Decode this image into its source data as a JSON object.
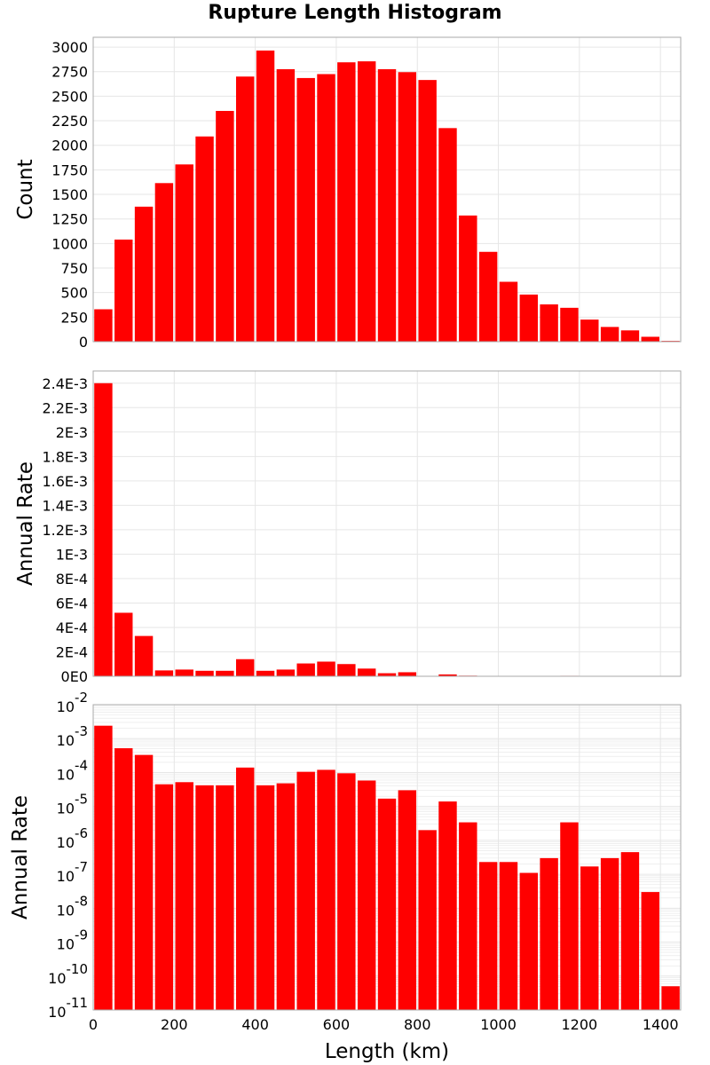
{
  "title": "Rupture Length Histogram",
  "colors": {
    "bar": "#ff0000",
    "grid": "#e6e6e6",
    "frame": "#aaaaaa"
  },
  "chart_data": [
    {
      "type": "bar",
      "name": "count-panel",
      "ylabel": "Count",
      "ylim": [
        0,
        3100
      ],
      "yticks": [
        0,
        250,
        500,
        750,
        1000,
        1250,
        1500,
        1750,
        2000,
        2250,
        2500,
        2750,
        3000
      ],
      "ytick_labels": [
        "0",
        "250",
        "500",
        "750",
        "1000",
        "1250",
        "1500",
        "1750",
        "2000",
        "2250",
        "2500",
        "2750",
        "3000"
      ],
      "xlim": [
        0,
        1450
      ],
      "bin_width": 50,
      "x": [
        25,
        75,
        125,
        175,
        225,
        275,
        325,
        375,
        425,
        475,
        525,
        575,
        625,
        675,
        725,
        775,
        825,
        875,
        925,
        975,
        1025,
        1075,
        1125,
        1175,
        1225,
        1275,
        1325,
        1375,
        1425
      ],
      "values": [
        330,
        1040,
        1375,
        1615,
        1805,
        2090,
        2350,
        2700,
        2965,
        2775,
        2685,
        2725,
        2845,
        2855,
        2775,
        2745,
        2665,
        2175,
        1285,
        915,
        610,
        480,
        380,
        345,
        225,
        150,
        115,
        50,
        8
      ],
      "grid": true
    },
    {
      "type": "bar",
      "name": "rate-panel",
      "ylabel": "Annual Rate",
      "ylim": [
        0,
        0.0025
      ],
      "yticks": [
        0,
        0.0002,
        0.0004,
        0.0006,
        0.0008,
        0.001,
        0.0012,
        0.0014,
        0.0016,
        0.0018,
        0.002,
        0.0022,
        0.0024
      ],
      "ytick_labels": [
        "0E0",
        "2E-4",
        "4E-4",
        "6E-4",
        "8E-4",
        "1E-3",
        "1.2E-3",
        "1.4E-3",
        "1.6E-3",
        "1.8E-3",
        "2E-3",
        "2.2E-3",
        "2.4E-3"
      ],
      "xlim": [
        0,
        1450
      ],
      "bin_width": 50,
      "x": [
        25,
        75,
        125,
        175,
        225,
        275,
        325,
        375,
        425,
        475,
        525,
        575,
        625,
        675,
        725,
        775,
        825,
        875,
        925,
        975,
        1025,
        1075,
        1125,
        1175,
        1225,
        1275,
        1325,
        1375,
        1425
      ],
      "values": [
        0.0024,
        0.00052,
        0.00033,
        4.8e-05,
        5.5e-05,
        4.5e-05,
        4.5e-05,
        0.00014,
        4.5e-05,
        5.5e-05,
        0.000105,
        0.00012,
        0.0001,
        6.3e-05,
        2.5e-05,
        3.3e-05,
        3e-06,
        1.5e-05,
        5e-06,
        2e-07,
        2e-07,
        1e-07,
        3e-07,
        4e-06,
        2e-07,
        2e-07,
        3e-07,
        3e-07,
        5e-11
      ],
      "grid": true
    },
    {
      "type": "bar",
      "name": "log-rate-panel",
      "ylabel": "Annual Rate",
      "xlabel": "Length (km)",
      "yscale": "log",
      "ylim_exp": [
        -11,
        -2
      ],
      "ytick_exps": [
        -2,
        -3,
        -4,
        -5,
        -6,
        -7,
        -8,
        -9,
        -10,
        -11
      ],
      "ytick_base": "10",
      "xlim": [
        0,
        1450
      ],
      "xticks": [
        0,
        200,
        400,
        600,
        800,
        1000,
        1200,
        1400
      ],
      "xtick_labels": [
        "0",
        "200",
        "400",
        "600",
        "800",
        "1000",
        "1200",
        "1400"
      ],
      "bin_width": 50,
      "x": [
        25,
        75,
        125,
        175,
        225,
        275,
        325,
        375,
        425,
        475,
        525,
        575,
        625,
        675,
        725,
        775,
        825,
        875,
        925,
        975,
        1025,
        1075,
        1125,
        1175,
        1225,
        1275,
        1325,
        1375,
        1425
      ],
      "values": [
        0.0024,
        0.00052,
        0.00033,
        4.5e-05,
        5.2e-05,
        4.2e-05,
        4.2e-05,
        0.00014,
        4.2e-05,
        4.8e-05,
        0.000105,
        0.00012,
        9.5e-05,
        5.8e-05,
        1.7e-05,
        3e-05,
        2e-06,
        1.4e-05,
        3.4e-06,
        2.3e-07,
        2.3e-07,
        1.1e-07,
        3e-07,
        3.4e-06,
        1.7e-07,
        3e-07,
        4.5e-07,
        3e-08,
        5e-11
      ],
      "grid": true
    }
  ]
}
